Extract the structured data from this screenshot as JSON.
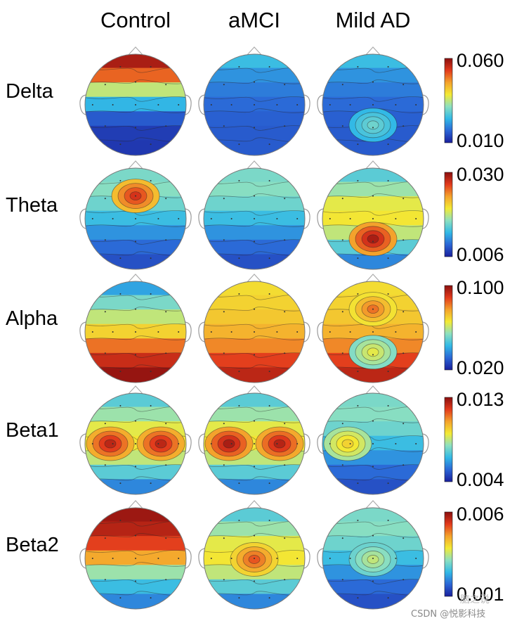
{
  "columns": [
    "Control",
    "aMCI",
    "Mild AD"
  ],
  "rows": [
    {
      "band": "Delta",
      "scale_max": "0.060",
      "scale_min": "0.010"
    },
    {
      "band": "Theta",
      "scale_max": "0.030",
      "scale_min": "0.006"
    },
    {
      "band": "Alpha",
      "scale_max": "0.100",
      "scale_min": "0.020"
    },
    {
      "band": "Beta1",
      "scale_max": "0.013",
      "scale_min": "0.004"
    },
    {
      "band": "Beta2",
      "scale_max": "0.006",
      "scale_min": "0.001"
    }
  ],
  "colormap": [
    "#1a1f9c",
    "#2b66d6",
    "#32b9e6",
    "#8de0c0",
    "#f3ea34",
    "#f4a22c",
    "#e23a1c",
    "#8a0f0f"
  ],
  "maps": {
    "Delta": [
      {
        "base": "frontal-high",
        "blobs": []
      },
      {
        "base": "low-uniform",
        "blobs": []
      },
      {
        "base": "low-uniform",
        "blobs": [
          {
            "where": "posterior-center",
            "level": 0.38
          }
        ]
      }
    ],
    "Theta": [
      {
        "base": "low-mid",
        "blobs": [
          {
            "where": "frontal-center",
            "level": 0.88
          }
        ]
      },
      {
        "base": "low-mid",
        "blobs": []
      },
      {
        "base": "mid",
        "blobs": [
          {
            "where": "parietal-center",
            "level": 0.95
          }
        ]
      }
    ],
    "Alpha": [
      {
        "base": "posterior-high",
        "blobs": []
      },
      {
        "base": "mid-high",
        "blobs": []
      },
      {
        "base": "mid-high",
        "blobs": [
          {
            "where": "frontal-center",
            "level": 0.78
          },
          {
            "where": "parietal-center",
            "level": 0.55
          }
        ]
      }
    ],
    "Beta1": [
      {
        "base": "mid",
        "blobs": [
          {
            "where": "left-central",
            "level": 0.92
          },
          {
            "where": "right-central",
            "level": 0.92
          }
        ]
      },
      {
        "base": "mid",
        "blobs": [
          {
            "where": "left-central",
            "level": 0.95
          },
          {
            "where": "right-central",
            "level": 0.93
          }
        ]
      },
      {
        "base": "low-mid",
        "blobs": [
          {
            "where": "left-central",
            "level": 0.62
          }
        ]
      }
    ],
    "Beta2": [
      {
        "base": "frontal-very-high",
        "blobs": []
      },
      {
        "base": "mid",
        "blobs": [
          {
            "where": "central",
            "level": 0.82
          }
        ]
      },
      {
        "base": "low-mid",
        "blobs": [
          {
            "where": "central",
            "level": 0.5
          }
        ]
      }
    ]
  },
  "watermark": "CSDN @悦影科技",
  "watermark_logo": "脑之说"
}
